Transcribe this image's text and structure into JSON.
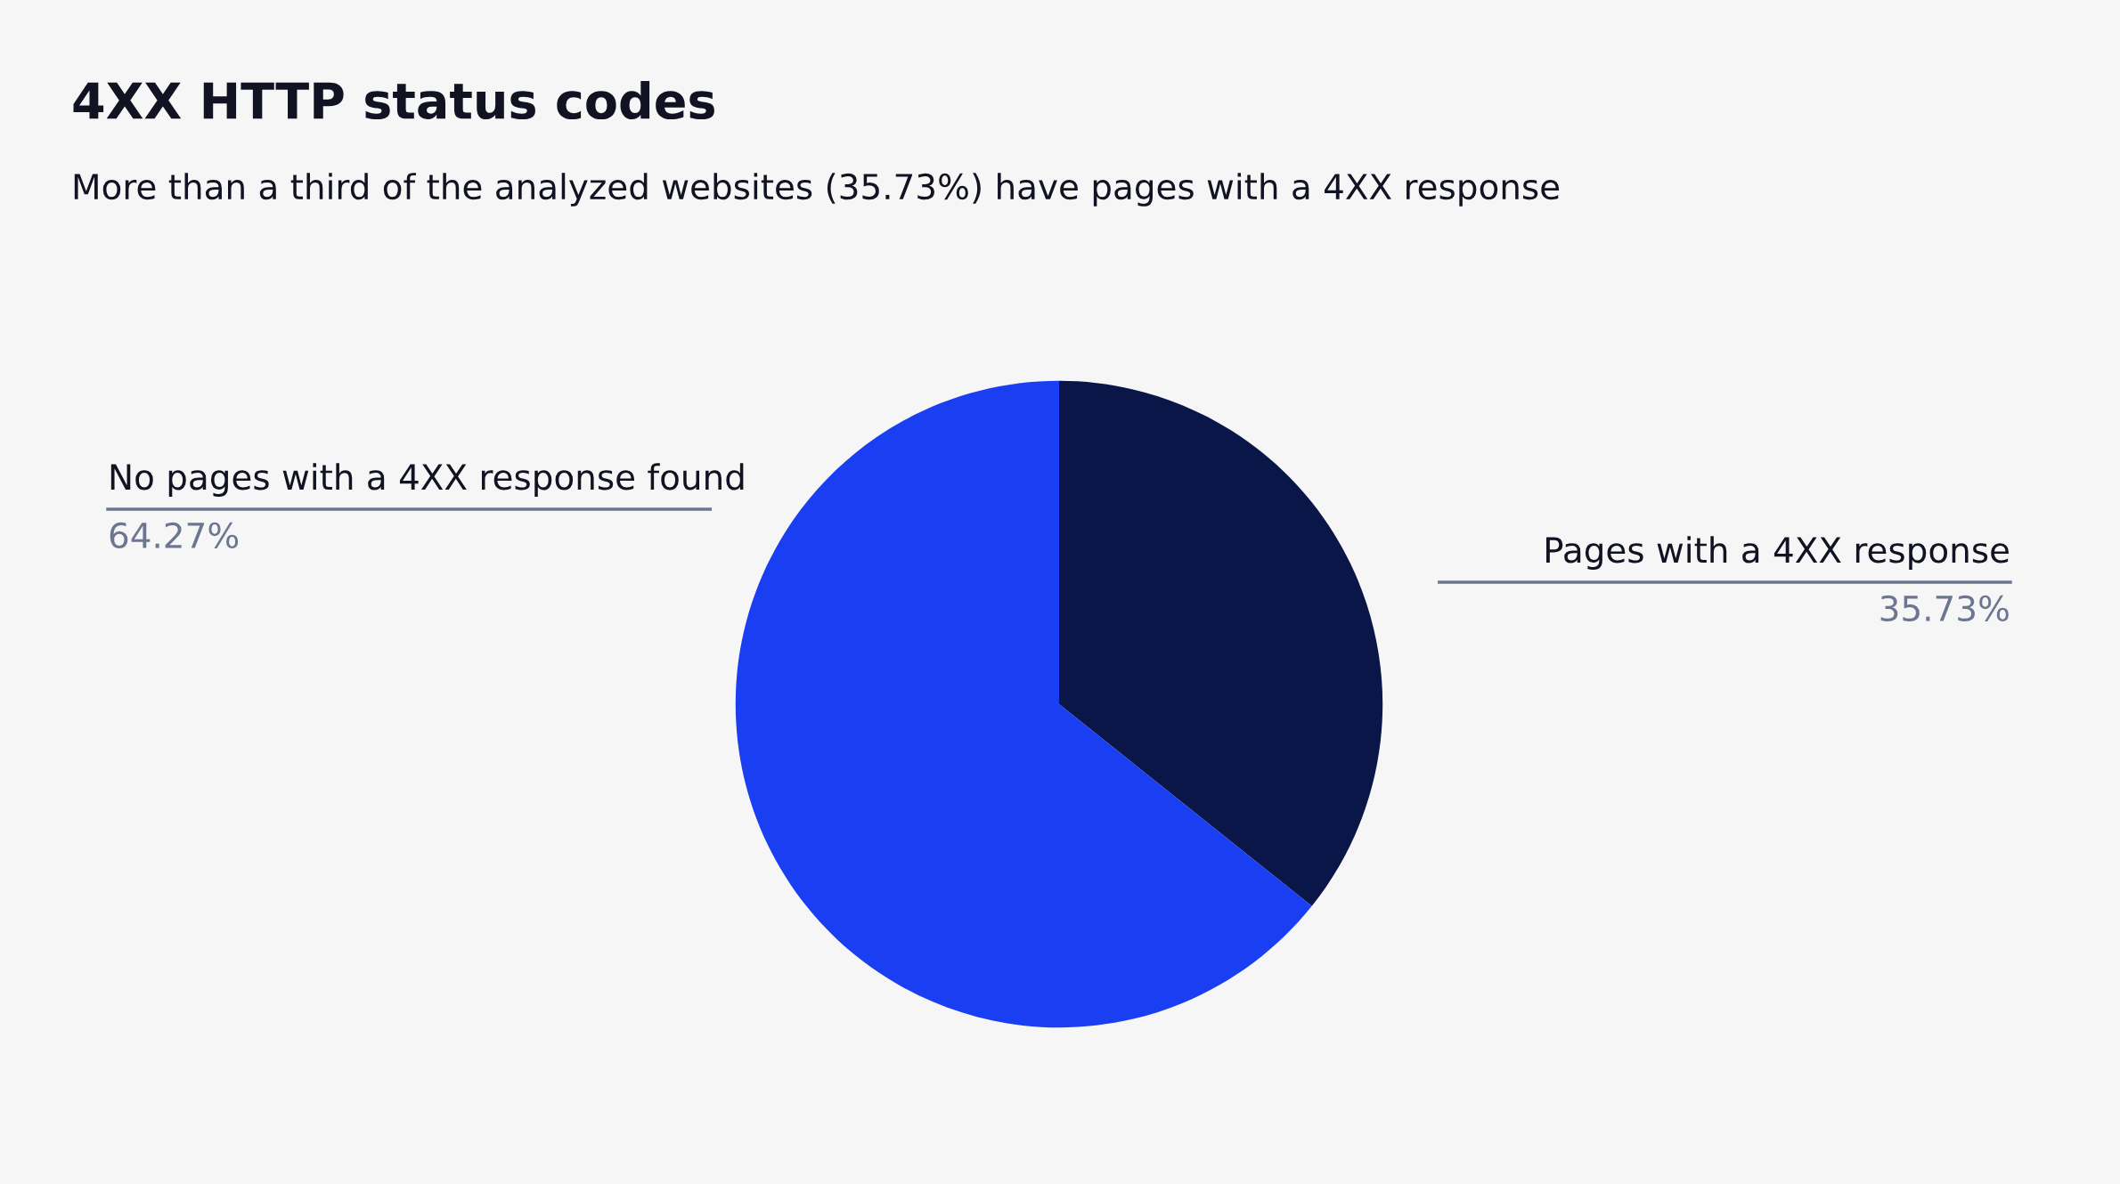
{
  "chart_data": {
    "type": "pie",
    "title": "4XX HTTP status codes",
    "subtitle": "More than a third of the analyzed websites (35.73%) have pages with a 4XX response",
    "categories": [
      "Pages with a 4XX response",
      "No pages with a 4XX response found"
    ],
    "values": [
      35.73,
      64.27
    ],
    "value_labels": [
      "35.73%",
      "64.27%"
    ],
    "colors": [
      "#0b1648",
      "#1a3ef2"
    ],
    "legend": false
  }
}
